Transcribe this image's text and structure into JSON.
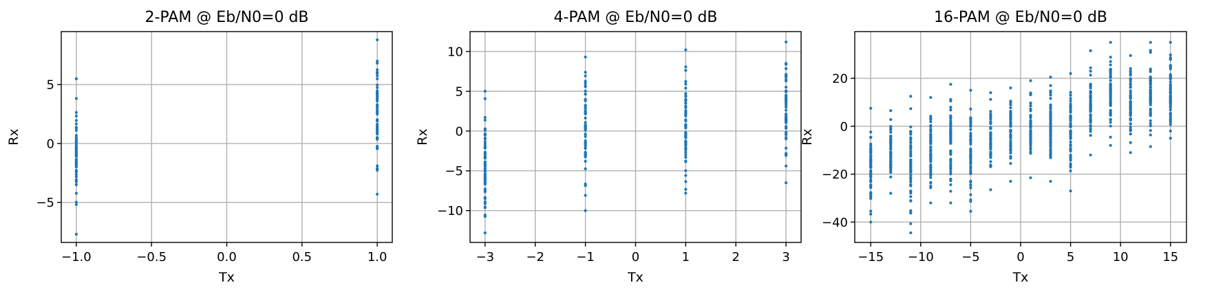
{
  "chart_data": [
    {
      "type": "scatter",
      "title": "2-PAM @ Eb/N0=0 dB",
      "xlabel": "Tx",
      "ylabel": "Rx",
      "xlim": [
        -1.1,
        1.1
      ],
      "ylim": [
        -8.4,
        9.5
      ],
      "xticks": [
        -1.0,
        -0.5,
        0.0,
        0.5,
        1.0
      ],
      "xtick_labels": [
        "−1.0",
        "−0.5",
        "0.0",
        "0.5",
        "1.0"
      ],
      "yticks": [
        -5,
        0,
        5
      ],
      "ytick_labels": [
        "−5",
        "0",
        "5"
      ],
      "grid": true,
      "color": "#1f77b4",
      "levels": [
        -1,
        1
      ],
      "spread": [
        [
          -7.7,
          5.5
        ],
        [
          -4.3,
          8.8
        ]
      ]
    },
    {
      "type": "scatter",
      "title": "4-PAM @ Eb/N0=0 dB",
      "xlabel": "Tx",
      "ylabel": "Rx",
      "xlim": [
        -3.3,
        3.3
      ],
      "ylim": [
        -14,
        12.5
      ],
      "xticks": [
        -3,
        -2,
        -1,
        0,
        1,
        2,
        3
      ],
      "xtick_labels": [
        "−3",
        "−2",
        "−1",
        "0",
        "1",
        "2",
        "3"
      ],
      "yticks": [
        -10,
        -5,
        0,
        5,
        10
      ],
      "ytick_labels": [
        "−10",
        "−5",
        "0",
        "5",
        "10"
      ],
      "grid": true,
      "color": "#1f77b4",
      "levels": [
        -3,
        -1,
        1,
        3
      ],
      "spread": [
        [
          -12.8,
          5.0
        ],
        [
          -10.0,
          9.3
        ],
        [
          -7.8,
          10.2
        ],
        [
          -6.5,
          11.2
        ]
      ]
    },
    {
      "type": "scatter",
      "title": "16-PAM @ Eb/N0=0 dB",
      "xlabel": "Tx",
      "ylabel": "Rx",
      "xlim": [
        -16.6,
        16.6
      ],
      "ylim": [
        -48.5,
        39.5
      ],
      "xticks": [
        -15,
        -10,
        -5,
        0,
        5,
        10,
        15
      ],
      "xtick_labels": [
        "−15",
        "−10",
        "−5",
        "0",
        "5",
        "10",
        "15"
      ],
      "yticks": [
        -40,
        -20,
        0,
        20
      ],
      "ytick_labels": [
        "−40",
        "−20",
        "0",
        "20"
      ],
      "grid": true,
      "color": "#1f77b4",
      "levels": [
        -15,
        -13,
        -11,
        -9,
        -7,
        -5,
        -3,
        -1,
        1,
        3,
        5,
        7,
        9,
        11,
        13,
        15
      ],
      "spread": [
        [
          -40,
          7.5
        ],
        [
          -28,
          6.5
        ],
        [
          -44.5,
          12.5
        ],
        [
          -32,
          12
        ],
        [
          -32,
          17.5
        ],
        [
          -35.5,
          15
        ],
        [
          -26.5,
          14
        ],
        [
          -23,
          16
        ],
        [
          -21.5,
          19
        ],
        [
          -23,
          20.5
        ],
        [
          -27,
          22
        ],
        [
          -12,
          31.5
        ],
        [
          -8,
          35
        ],
        [
          -11,
          29.5
        ],
        [
          -8.5,
          35
        ],
        [
          -5,
          35
        ]
      ]
    }
  ]
}
